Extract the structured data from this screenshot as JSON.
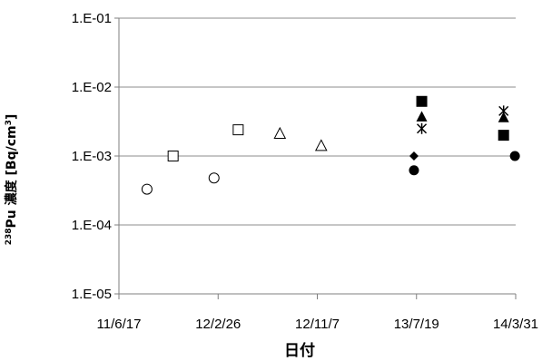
{
  "chart_data": {
    "type": "scatter",
    "xlabel": "日付",
    "ylabel": {
      "superscript": "238",
      "text": "Pu 濃度 [Bq/cm",
      "unit_superscript": "3",
      "closing": "]"
    },
    "x_ticks": [
      "11/6/17",
      "12/2/26",
      "12/11/7",
      "13/7/19",
      "14/3/31"
    ],
    "x_range": [
      "2011-06-17",
      "2014-03-31"
    ],
    "y_ticks": [
      "1.E-05",
      "1.E-04",
      "1.E-03",
      "1.E-02",
      "1.E-01"
    ],
    "y_range": [
      1e-05,
      0.1
    ],
    "y_scale": "log",
    "grid": "horizontal-major",
    "legend": "none",
    "series": [
      {
        "marker": "circle-open",
        "points": [
          {
            "x": "2011-08-28",
            "y": 0.00033
          },
          {
            "x": "2012-02-16",
            "y": 0.00048
          }
        ]
      },
      {
        "marker": "square-open",
        "points": [
          {
            "x": "2011-11-03",
            "y": 0.001
          },
          {
            "x": "2012-04-18",
            "y": 0.0024
          }
        ]
      },
      {
        "marker": "triangle-open",
        "points": [
          {
            "x": "2012-08-03",
            "y": 0.0021
          },
          {
            "x": "2012-11-17",
            "y": 0.0014
          }
        ]
      },
      {
        "marker": "diamond-filled",
        "points": [
          {
            "x": "2013-07-13",
            "y": 0.001
          }
        ]
      },
      {
        "marker": "circle-filled",
        "points": [
          {
            "x": "2013-07-13",
            "y": 0.00062
          },
          {
            "x": "2014-03-29",
            "y": 0.001
          }
        ]
      },
      {
        "marker": "square-filled",
        "points": [
          {
            "x": "2013-08-02",
            "y": 0.0062
          },
          {
            "x": "2014-02-28",
            "y": 0.002
          }
        ]
      },
      {
        "marker": "triangle-filled",
        "points": [
          {
            "x": "2013-08-02",
            "y": 0.0037
          },
          {
            "x": "2014-02-28",
            "y": 0.0036
          }
        ]
      },
      {
        "marker": "asterisk",
        "points": [
          {
            "x": "2013-08-02",
            "y": 0.0025
          },
          {
            "x": "2014-02-28",
            "y": 0.0045
          }
        ]
      }
    ]
  }
}
